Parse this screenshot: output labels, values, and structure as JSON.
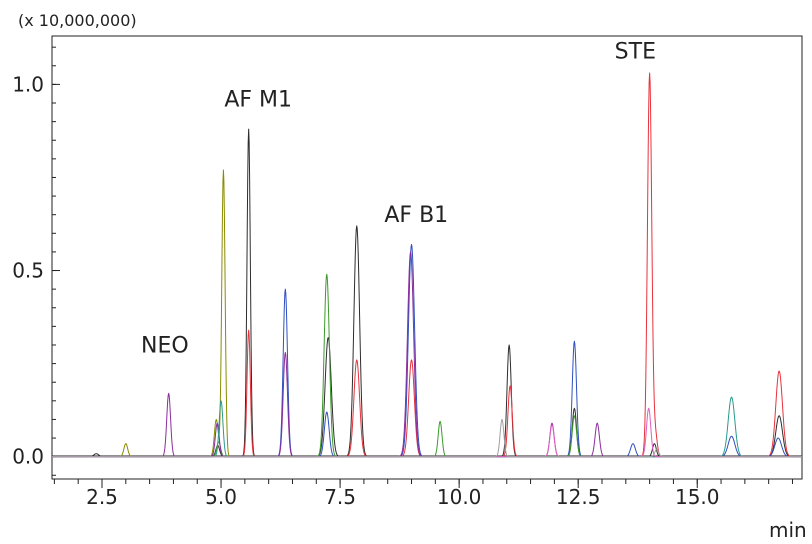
{
  "chart_data": {
    "type": "line",
    "title": "",
    "multiplier_label": "(x 10,000,000)",
    "xlabel": "min",
    "ylabel": "",
    "xlim": [
      1.45,
      17.2
    ],
    "ylim": [
      -0.06,
      1.13
    ],
    "x_major_ticks": [
      2.5,
      5.0,
      7.5,
      10.0,
      12.5,
      15.0
    ],
    "x_tick_labels": [
      "2.5",
      "5.0",
      "7.5",
      "10.0",
      "12.5",
      "15.0"
    ],
    "x_minor_step": 0.5,
    "y_ticks": [
      0.0,
      0.5,
      1.0
    ],
    "y_tick_labels": [
      "0.0",
      "0.5",
      "1.0"
    ],
    "y_minor_step": 0.05,
    "grid": false,
    "annotations": [
      {
        "text": "NEO",
        "x": 3.82,
        "y": 0.28
      },
      {
        "text": "AF M1",
        "x": 5.78,
        "y": 0.94
      },
      {
        "text": "AF B1",
        "x": 9.1,
        "y": 0.63
      },
      {
        "text": "STE",
        "x": 13.7,
        "y": 1.07
      }
    ],
    "series": [
      {
        "color": "#2d2d2d",
        "peaks": [
          [
            2.38,
            0.008,
            0.05
          ],
          [
            4.93,
            0.03,
            0.04
          ],
          [
            5.58,
            0.88,
            0.035
          ],
          [
            7.25,
            0.32,
            0.065
          ],
          [
            7.85,
            0.44,
            0.06
          ],
          [
            7.85,
            0.18,
            0.06
          ],
          [
            11.05,
            0.3,
            0.045
          ],
          [
            12.42,
            0.13,
            0.045
          ],
          [
            14.1,
            0.035,
            0.04
          ],
          [
            16.72,
            0.11,
            0.07
          ]
        ]
      },
      {
        "color": "#8b8b00",
        "peaks": [
          [
            3.0,
            0.035,
            0.04
          ],
          [
            4.9,
            0.1,
            0.04
          ],
          [
            5.05,
            0.77,
            0.035
          ]
        ]
      },
      {
        "color": "#e8323c",
        "peaks": [
          [
            5.58,
            0.34,
            0.035
          ],
          [
            7.85,
            0.26,
            0.06
          ],
          [
            9.0,
            0.26,
            0.06
          ],
          [
            11.07,
            0.19,
            0.045
          ],
          [
            14.0,
            1.03,
            0.045
          ],
          [
            14.12,
            0.06,
            0.04
          ],
          [
            16.72,
            0.23,
            0.07
          ]
        ]
      },
      {
        "color": "#2f4fbf",
        "peaks": [
          [
            6.35,
            0.45,
            0.045
          ],
          [
            7.22,
            0.12,
            0.05
          ],
          [
            9.0,
            0.57,
            0.065
          ],
          [
            12.42,
            0.31,
            0.045
          ],
          [
            13.65,
            0.035,
            0.05
          ],
          [
            15.72,
            0.055,
            0.07
          ],
          [
            16.7,
            0.05,
            0.07
          ]
        ]
      },
      {
        "color": "#3d9a2d",
        "peaks": [
          [
            4.95,
            0.04,
            0.04
          ],
          [
            7.22,
            0.49,
            0.055
          ],
          [
            9.6,
            0.095,
            0.04
          ],
          [
            12.42,
            0.11,
            0.045
          ]
        ]
      },
      {
        "color": "#8a2e9e",
        "peaks": [
          [
            3.9,
            0.17,
            0.04
          ],
          [
            4.92,
            0.09,
            0.04
          ],
          [
            6.35,
            0.28,
            0.045
          ],
          [
            8.98,
            0.55,
            0.065
          ],
          [
            11.95,
            0.09,
            0.045
          ],
          [
            12.9,
            0.09,
            0.045
          ]
        ]
      },
      {
        "color": "#2a9a8a",
        "peaks": [
          [
            5.0,
            0.15,
            0.04
          ],
          [
            15.72,
            0.16,
            0.07
          ]
        ]
      },
      {
        "color": "#e05fc0",
        "peaks": [
          [
            11.95,
            0.085,
            0.045
          ],
          [
            13.98,
            0.13,
            0.045
          ]
        ]
      },
      {
        "color": "#a0a0a0",
        "peaks": [
          [
            10.9,
            0.1,
            0.04
          ],
          [
            14.15,
            0.02,
            0.04
          ]
        ]
      }
    ]
  }
}
